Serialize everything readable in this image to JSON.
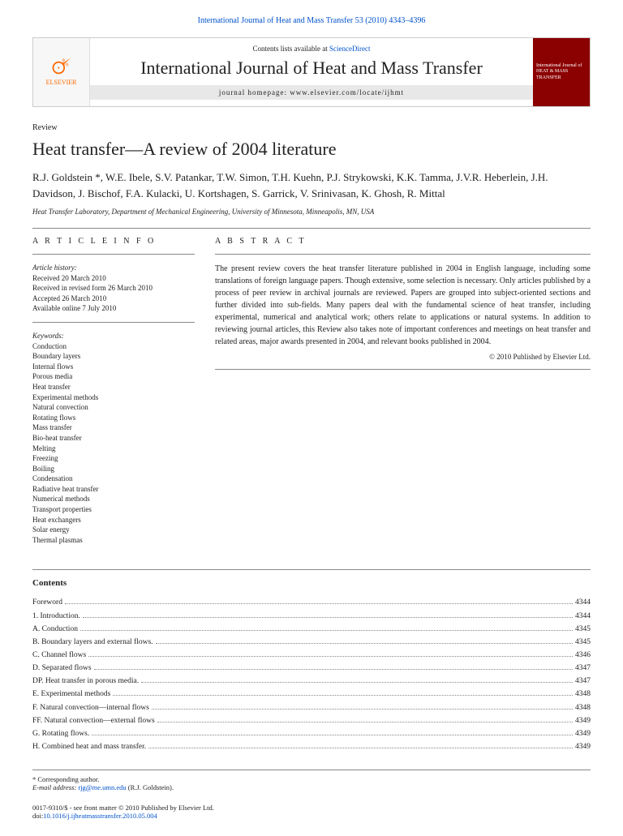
{
  "topLink": "International Journal of Heat and Mass Transfer 53 (2010) 4343–4396",
  "header": {
    "contentsLine": "Contents lists available at ",
    "contentsLink": "ScienceDirect",
    "journalName": "International Journal of Heat and Mass Transfer",
    "homepagePrefix": "journal homepage: ",
    "homepageUrl": "www.elsevier.com/locate/ijhmt",
    "publisher": "ELSEVIER",
    "coverText": "International Journal of HEAT & MASS TRANSFER"
  },
  "articleType": "Review",
  "title": "Heat transfer—A review of 2004 literature",
  "authors": "R.J. Goldstein *, W.E. Ibele, S.V. Patankar, T.W. Simon, T.H. Kuehn, P.J. Strykowski, K.K. Tamma, J.V.R. Heberlein, J.H. Davidson, J. Bischof, F.A. Kulacki, U. Kortshagen, S. Garrick, V. Srinivasan, K. Ghosh, R. Mittal",
  "affiliation": "Heat Transfer Laboratory, Department of Mechanical Engineering, University of Minnesota, Minneapolis, MN, USA",
  "infoHeading": "A R T I C L E   I N F O",
  "abstractHeading": "A B S T R A C T",
  "history": {
    "label": "Article history:",
    "received": "Received 20 March 2010",
    "revised": "Received in revised form 26 March 2010",
    "accepted": "Accepted 26 March 2010",
    "online": "Available online 7 July 2010"
  },
  "keywordsLabel": "Keywords:",
  "keywords": [
    "Conduction",
    "Boundary layers",
    "Internal flows",
    "Porous media",
    "Heat transfer",
    "Experimental methods",
    "Natural convection",
    "Rotating flows",
    "Mass transfer",
    "Bio-heat transfer",
    "Melting",
    "Freezing",
    "Boiling",
    "Condensation",
    "Radiative heat transfer",
    "Numerical methods",
    "Transport properties",
    "Heat exchangers",
    "Solar energy",
    "Thermal plasmas"
  ],
  "abstract": "The present review covers the heat transfer literature published in 2004 in English language, including some translations of foreign language papers. Though extensive, some selection is necessary. Only articles published by a process of peer review in archival journals are reviewed. Papers are grouped into subject-oriented sections and further divided into sub-fields. Many papers deal with the fundamental science of heat transfer, including experimental, numerical and analytical work; others relate to applications or natural systems. In addition to reviewing journal articles, this Review also takes note of important conferences and meetings on heat transfer and related areas, major awards presented in 2004, and relevant books published in 2004.",
  "copyright": "© 2010 Published by Elsevier Ltd.",
  "contentsLabel": "Contents",
  "toc": [
    {
      "label": "Foreword",
      "page": "4344"
    },
    {
      "label": "1. Introduction.",
      "page": "4344"
    },
    {
      "label": "A. Conduction",
      "page": "4345"
    },
    {
      "label": "B. Boundary layers and external flows.",
      "page": "4345"
    },
    {
      "label": "C. Channel flows",
      "page": "4346"
    },
    {
      "label": "D. Separated flows",
      "page": "4347"
    },
    {
      "label": "DP. Heat transfer in porous media.",
      "page": "4347"
    },
    {
      "label": "E. Experimental methods",
      "page": "4348"
    },
    {
      "label": "F. Natural convection—internal flows",
      "page": "4348"
    },
    {
      "label": "FF. Natural convection—external flows",
      "page": "4349"
    },
    {
      "label": "G. Rotating flows.",
      "page": "4349"
    },
    {
      "label": "H. Combined heat and mass transfer.",
      "page": "4349"
    }
  ],
  "footnote": {
    "corresponding": "* Corresponding author.",
    "emailLabel": "E-mail address: ",
    "email": "rjg@me.umn.edu",
    "emailSuffix": " (R.J. Goldstein)."
  },
  "footer": {
    "issn": "0017-9310/$ - see front matter © 2010 Published by Elsevier Ltd.",
    "doiLabel": "doi:",
    "doi": "10.1016/j.ijheatmasstransfer.2010.05.004"
  }
}
